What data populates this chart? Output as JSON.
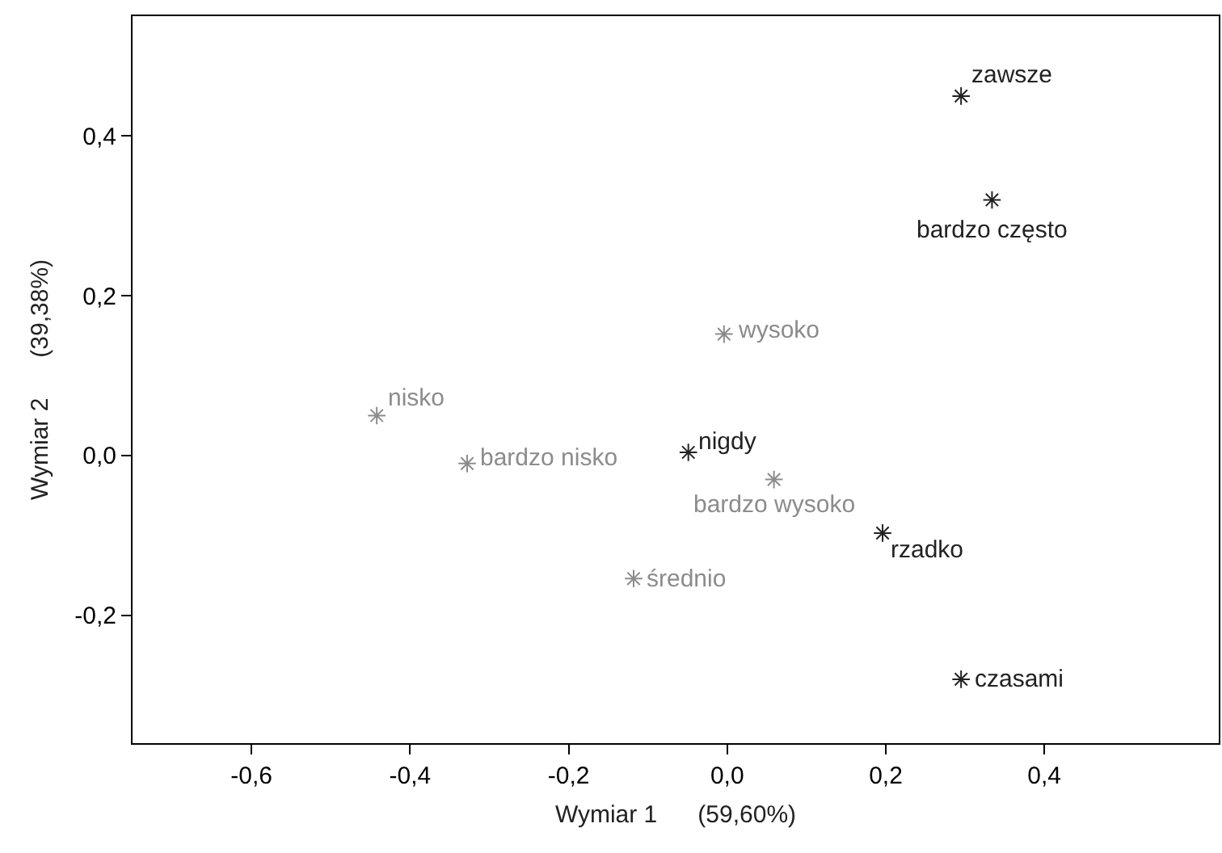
{
  "chart_data": {
    "type": "scatter",
    "xlabel": "Wymiar 1      (59,60%)",
    "ylabel": "Wymiar 2      (39,38%)",
    "xlim": [
      -0.75,
      0.62
    ],
    "ylim": [
      -0.36,
      0.55
    ],
    "xticks": [
      {
        "value": -0.6,
        "label": "-0,6"
      },
      {
        "value": -0.4,
        "label": "-0,4"
      },
      {
        "value": -0.2,
        "label": "-0,2"
      },
      {
        "value": 0.0,
        "label": "0,0"
      },
      {
        "value": 0.2,
        "label": "0,2"
      },
      {
        "value": 0.4,
        "label": "0,4"
      }
    ],
    "yticks": [
      {
        "value": -0.2,
        "label": "-0,2"
      },
      {
        "value": 0.0,
        "label": "0,0"
      },
      {
        "value": 0.2,
        "label": "0,2"
      },
      {
        "value": 0.4,
        "label": "0,4"
      }
    ],
    "legend": false,
    "marker": "cross",
    "series": [
      {
        "color": "#222222",
        "x": [
          0.295,
          0.334,
          -0.049,
          0.196,
          0.295
        ],
        "values": [
          0.45,
          0.32,
          0.004,
          -0.097,
          -0.28
        ]
      },
      {
        "color": "#8c8c8c",
        "x": [
          -0.004,
          -0.442,
          -0.328,
          0.059,
          -0.118
        ],
        "values": [
          0.152,
          0.05,
          -0.01,
          -0.03,
          -0.154
        ]
      }
    ],
    "annotations": [
      {
        "text": "zawsze",
        "x": 0.295,
        "y": 0.45
      },
      {
        "text": "bardzo często",
        "x": 0.334,
        "y": 0.32
      },
      {
        "text": "nigdy",
        "x": -0.049,
        "y": 0.004
      },
      {
        "text": "rzadko",
        "x": 0.196,
        "y": -0.097
      },
      {
        "text": "czasami",
        "x": 0.295,
        "y": -0.28
      },
      {
        "text": "wysoko",
        "x": -0.004,
        "y": 0.152
      },
      {
        "text": "nisko",
        "x": -0.442,
        "y": 0.05
      },
      {
        "text": "bardzo nisko",
        "x": -0.328,
        "y": -0.01
      },
      {
        "text": "bardzo wysoko",
        "x": 0.059,
        "y": -0.03
      },
      {
        "text": "średnio",
        "x": -0.118,
        "y": -0.154
      }
    ]
  }
}
